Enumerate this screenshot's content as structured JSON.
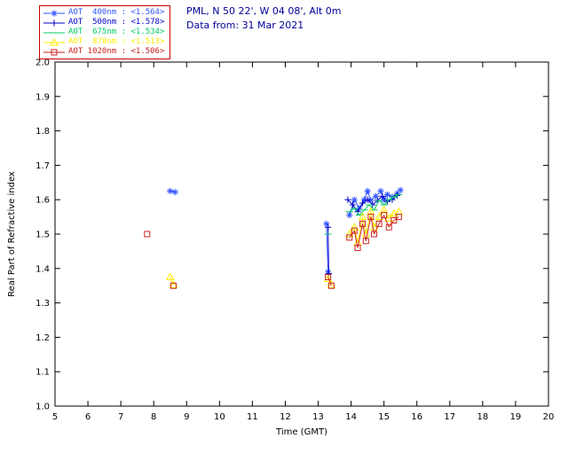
{
  "header": {
    "site_line": "PML, N 50 22', W 04 08', Alt 0m",
    "data_line": "Data from: 31 Mar 2021"
  },
  "chart_data": {
    "type": "scatter",
    "title": "",
    "xlabel": "Time (GMT)",
    "ylabel": "Real Part of Refractive index",
    "xlim": [
      5,
      20
    ],
    "ylim": [
      1.0,
      2.0
    ],
    "xticks": [
      5,
      6,
      7,
      8,
      9,
      10,
      11,
      12,
      13,
      14,
      15,
      16,
      17,
      18,
      19,
      20
    ],
    "yticks": [
      1.0,
      1.1,
      1.2,
      1.3,
      1.4,
      1.5,
      1.6,
      1.7,
      1.8,
      1.9,
      2.0
    ],
    "ytick_labels": [
      "1.0",
      "1.1",
      "1.2",
      "1.3",
      "1.4",
      "1.5",
      "1.6",
      "1.7",
      "1.8",
      "1.9",
      "2.0"
    ],
    "grid": false,
    "legend_position": "top-left",
    "legend_border_color": "#cc0000",
    "axis_color": "#000000",
    "header_color": "#000099",
    "series": [
      {
        "name": "AOT  400nm : <1.564>",
        "color": "#3355ff",
        "marker": "asterisk",
        "x": [
          8.5,
          8.65,
          13.25,
          13.3,
          13.95,
          14.1,
          14.25,
          14.4,
          14.5,
          14.6,
          14.75,
          14.9,
          15.0,
          15.1,
          15.25,
          15.4,
          15.5
        ],
        "y": [
          1.625,
          1.622,
          1.53,
          1.39,
          1.555,
          1.6,
          1.575,
          1.6,
          1.625,
          1.598,
          1.61,
          1.625,
          1.6,
          1.615,
          1.608,
          1.618,
          1.628
        ]
      },
      {
        "name": "AOT  500nm : <1.578>",
        "color": "#0000cc",
        "marker": "plus",
        "x": [
          13.3,
          13.32,
          13.9,
          14.05,
          14.2,
          14.35,
          14.5,
          14.65,
          14.8,
          14.95,
          15.1,
          15.25,
          15.4
        ],
        "y": [
          1.52,
          1.385,
          1.6,
          1.585,
          1.565,
          1.59,
          1.6,
          1.585,
          1.598,
          1.61,
          1.595,
          1.6,
          1.612
        ]
      },
      {
        "name": "AOT  675nm : <1.534>",
        "color": "#00cc66",
        "marker": "dash",
        "x": [
          13.3,
          13.95,
          14.1,
          14.25,
          14.4,
          14.55,
          14.7,
          14.85,
          15.0,
          15.15,
          15.3,
          15.45
        ],
        "y": [
          1.5,
          1.565,
          1.575,
          1.555,
          1.57,
          1.585,
          1.57,
          1.598,
          1.585,
          1.6,
          1.608,
          1.615
        ]
      },
      {
        "name": "AOT  870nm : <1.513>",
        "color": "#ffec00",
        "marker": "triangle",
        "x": [
          8.5,
          8.6,
          13.3,
          13.4,
          13.95,
          14.1,
          14.2,
          14.35,
          14.45,
          14.6,
          14.7,
          14.85,
          15.0,
          15.15,
          15.3,
          15.45
        ],
        "y": [
          1.375,
          1.352,
          1.37,
          1.352,
          1.5,
          1.52,
          1.475,
          1.55,
          1.5,
          1.565,
          1.52,
          1.55,
          1.57,
          1.545,
          1.56,
          1.565
        ]
      },
      {
        "name": "AOT 1020nm : <1.506>",
        "color": "#cc2222",
        "marker": "square",
        "x": [
          7.8,
          8.6,
          13.3,
          13.4,
          13.95,
          14.1,
          14.2,
          14.35,
          14.45,
          14.6,
          14.7,
          14.85,
          15.0,
          15.15,
          15.3,
          15.45
        ],
        "y": [
          1.5,
          1.35,
          1.375,
          1.35,
          1.49,
          1.51,
          1.46,
          1.53,
          1.48,
          1.55,
          1.5,
          1.53,
          1.555,
          1.52,
          1.54,
          1.55
        ]
      }
    ]
  }
}
